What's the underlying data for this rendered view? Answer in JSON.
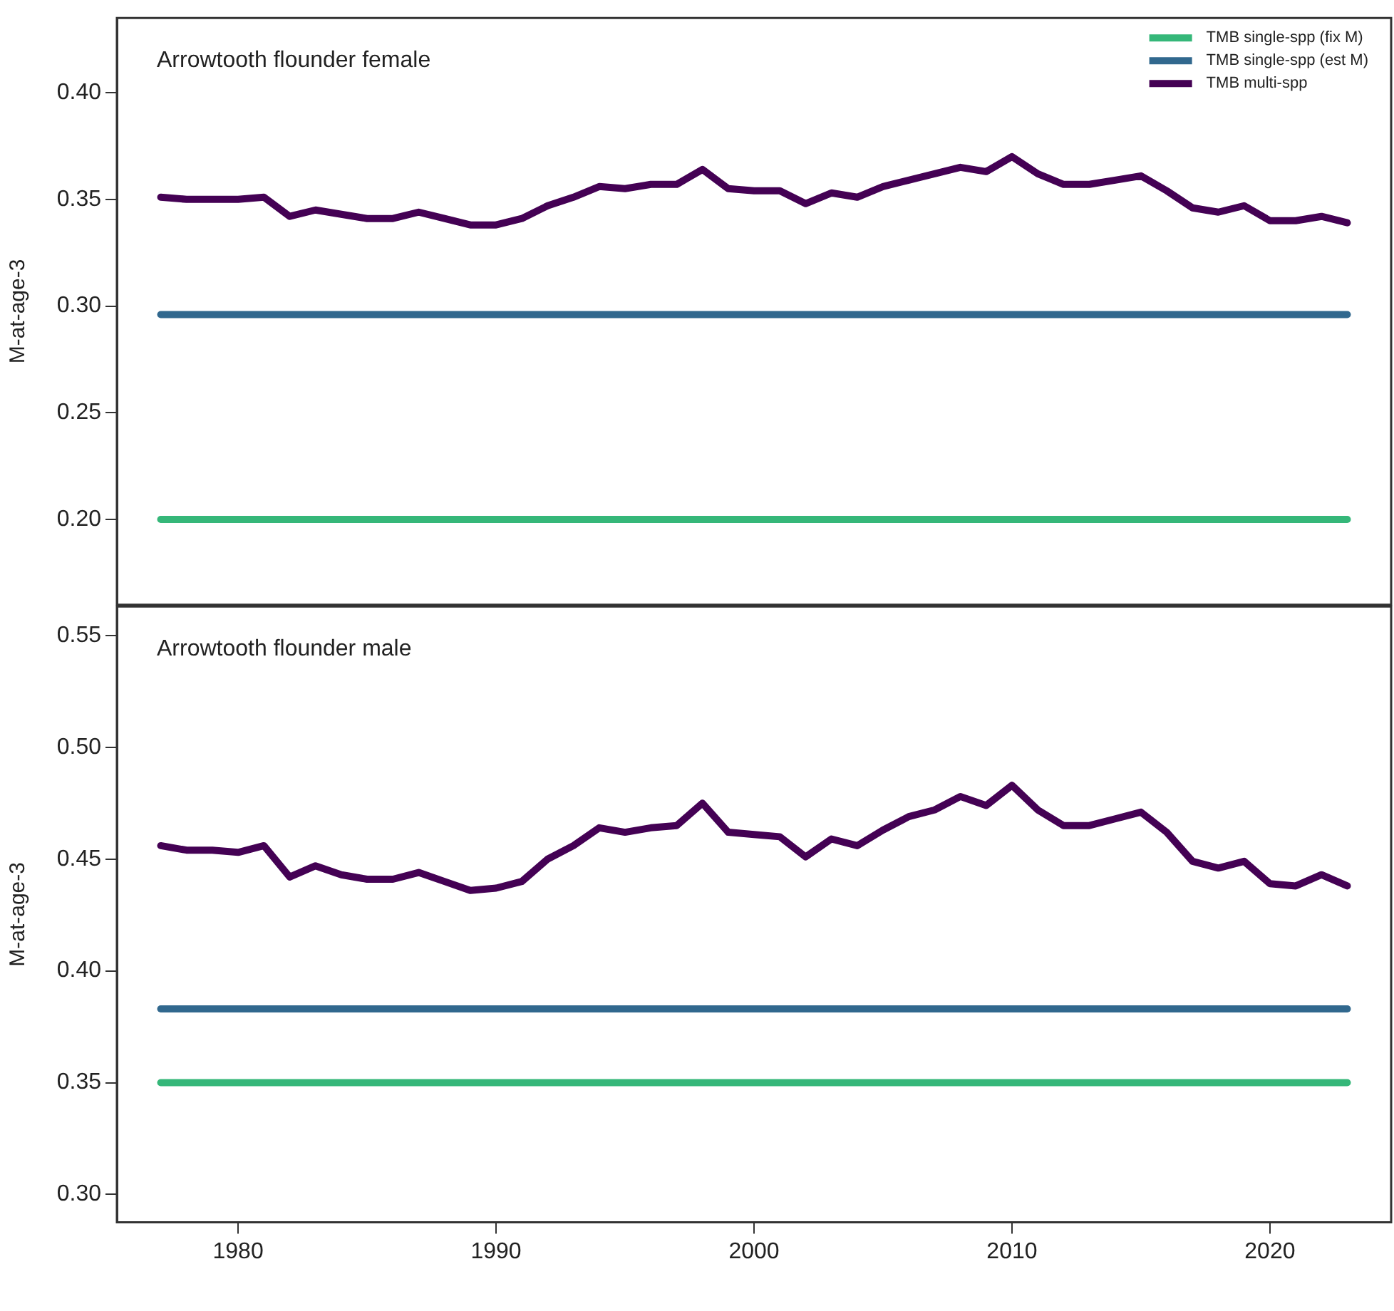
{
  "chart_data": [
    {
      "type": "line",
      "title": "Arrowtooth flounder female",
      "ylabel": "M-at-age-3",
      "xlim": [
        1975.3,
        2024.7
      ],
      "ylim": [
        0.16,
        0.435
      ],
      "yticks": [
        {
          "value": 0.2,
          "label": "0.20"
        },
        {
          "value": 0.25,
          "label": "0.25"
        },
        {
          "value": 0.3,
          "label": "0.30"
        },
        {
          "value": 0.35,
          "label": "0.35"
        },
        {
          "value": 0.4,
          "label": "0.40"
        }
      ],
      "tick_labels": "y",
      "grid": false,
      "legend": "top right",
      "marker": "none",
      "line_style": "solid",
      "x": [
        1977,
        1978,
        1979,
        1980,
        1981,
        1982,
        1983,
        1984,
        1985,
        1986,
        1987,
        1988,
        1989,
        1990,
        1991,
        1992,
        1993,
        1994,
        1995,
        1996,
        1997,
        1998,
        1999,
        2000,
        2001,
        2002,
        2003,
        2004,
        2005,
        2006,
        2007,
        2008,
        2009,
        2010,
        2011,
        2012,
        2013,
        2014,
        2015,
        2016,
        2017,
        2018,
        2019,
        2020,
        2021,
        2022,
        2023
      ],
      "series": [
        {
          "name": "TMB single-spp (fix M)",
          "color": "#35b779",
          "values": [
            0.2,
            0.2,
            0.2,
            0.2,
            0.2,
            0.2,
            0.2,
            0.2,
            0.2,
            0.2,
            0.2,
            0.2,
            0.2,
            0.2,
            0.2,
            0.2,
            0.2,
            0.2,
            0.2,
            0.2,
            0.2,
            0.2,
            0.2,
            0.2,
            0.2,
            0.2,
            0.2,
            0.2,
            0.2,
            0.2,
            0.2,
            0.2,
            0.2,
            0.2,
            0.2,
            0.2,
            0.2,
            0.2,
            0.2,
            0.2,
            0.2,
            0.2,
            0.2,
            0.2,
            0.2,
            0.2,
            0.2
          ]
        },
        {
          "name": "TMB single-spp (est M)",
          "color": "#31688e",
          "values": [
            0.296,
            0.296,
            0.296,
            0.296,
            0.296,
            0.296,
            0.296,
            0.296,
            0.296,
            0.296,
            0.296,
            0.296,
            0.296,
            0.296,
            0.296,
            0.296,
            0.296,
            0.296,
            0.296,
            0.296,
            0.296,
            0.296,
            0.296,
            0.296,
            0.296,
            0.296,
            0.296,
            0.296,
            0.296,
            0.296,
            0.296,
            0.296,
            0.296,
            0.296,
            0.296,
            0.296,
            0.296,
            0.296,
            0.296,
            0.296,
            0.296,
            0.296,
            0.296,
            0.296,
            0.296,
            0.296,
            0.296
          ]
        },
        {
          "name": "TMB multi-spp",
          "color": "#440154",
          "values": [
            0.351,
            0.35,
            0.35,
            0.35,
            0.351,
            0.342,
            0.345,
            0.343,
            0.341,
            0.341,
            0.344,
            0.341,
            0.338,
            0.338,
            0.341,
            0.347,
            0.351,
            0.356,
            0.355,
            0.357,
            0.357,
            0.364,
            0.355,
            0.354,
            0.354,
            0.348,
            0.353,
            0.351,
            0.356,
            0.359,
            0.362,
            0.365,
            0.363,
            0.37,
            0.362,
            0.357,
            0.357,
            0.359,
            0.361,
            0.354,
            0.346,
            0.344,
            0.347,
            0.34,
            0.34,
            0.342,
            0.339
          ]
        }
      ]
    },
    {
      "type": "line",
      "title": "Arrowtooth flounder male",
      "ylabel": "M-at-age-3",
      "xlim": [
        1975.3,
        2024.7
      ],
      "ylim": [
        0.2875,
        0.563
      ],
      "xticks": [
        1980,
        1990,
        2000,
        2010,
        2020
      ],
      "yticks": [
        {
          "value": 0.3,
          "label": "0.30"
        },
        {
          "value": 0.35,
          "label": "0.35"
        },
        {
          "value": 0.4,
          "label": "0.40"
        },
        {
          "value": 0.45,
          "label": "0.45"
        },
        {
          "value": 0.5,
          "label": "0.50"
        },
        {
          "value": 0.55,
          "label": "0.55"
        }
      ],
      "grid": false,
      "marker": "none",
      "line_style": "solid",
      "x": [
        1977,
        1978,
        1979,
        1980,
        1981,
        1982,
        1983,
        1984,
        1985,
        1986,
        1987,
        1988,
        1989,
        1990,
        1991,
        1992,
        1993,
        1994,
        1995,
        1996,
        1997,
        1998,
        1999,
        2000,
        2001,
        2002,
        2003,
        2004,
        2005,
        2006,
        2007,
        2008,
        2009,
        2010,
        2011,
        2012,
        2013,
        2014,
        2015,
        2016,
        2017,
        2018,
        2019,
        2020,
        2021,
        2022,
        2023
      ],
      "series": [
        {
          "color": "#35b779",
          "values": [
            0.35,
            0.35,
            0.35,
            0.35,
            0.35,
            0.35,
            0.35,
            0.35,
            0.35,
            0.35,
            0.35,
            0.35,
            0.35,
            0.35,
            0.35,
            0.35,
            0.35,
            0.35,
            0.35,
            0.35,
            0.35,
            0.35,
            0.35,
            0.35,
            0.35,
            0.35,
            0.35,
            0.35,
            0.35,
            0.35,
            0.35,
            0.35,
            0.35,
            0.35,
            0.35,
            0.35,
            0.35,
            0.35,
            0.35,
            0.35,
            0.35,
            0.35,
            0.35,
            0.35,
            0.35,
            0.35,
            0.35
          ]
        },
        {
          "color": "#31688e",
          "values": [
            0.383,
            0.383,
            0.383,
            0.383,
            0.383,
            0.383,
            0.383,
            0.383,
            0.383,
            0.383,
            0.383,
            0.383,
            0.383,
            0.383,
            0.383,
            0.383,
            0.383,
            0.383,
            0.383,
            0.383,
            0.383,
            0.383,
            0.383,
            0.383,
            0.383,
            0.383,
            0.383,
            0.383,
            0.383,
            0.383,
            0.383,
            0.383,
            0.383,
            0.383,
            0.383,
            0.383,
            0.383,
            0.383,
            0.383,
            0.383,
            0.383,
            0.383,
            0.383,
            0.383,
            0.383,
            0.383,
            0.383
          ]
        },
        {
          "color": "#440154",
          "values": [
            0.456,
            0.454,
            0.454,
            0.453,
            0.456,
            0.442,
            0.447,
            0.443,
            0.441,
            0.441,
            0.444,
            0.44,
            0.436,
            0.437,
            0.44,
            0.45,
            0.456,
            0.464,
            0.462,
            0.464,
            0.465,
            0.475,
            0.462,
            0.461,
            0.46,
            0.451,
            0.459,
            0.456,
            0.463,
            0.469,
            0.472,
            0.478,
            0.474,
            0.483,
            0.472,
            0.465,
            0.465,
            0.468,
            0.471,
            0.462,
            0.449,
            0.446,
            0.449,
            0.439,
            0.438,
            0.443,
            0.438
          ]
        }
      ]
    }
  ]
}
